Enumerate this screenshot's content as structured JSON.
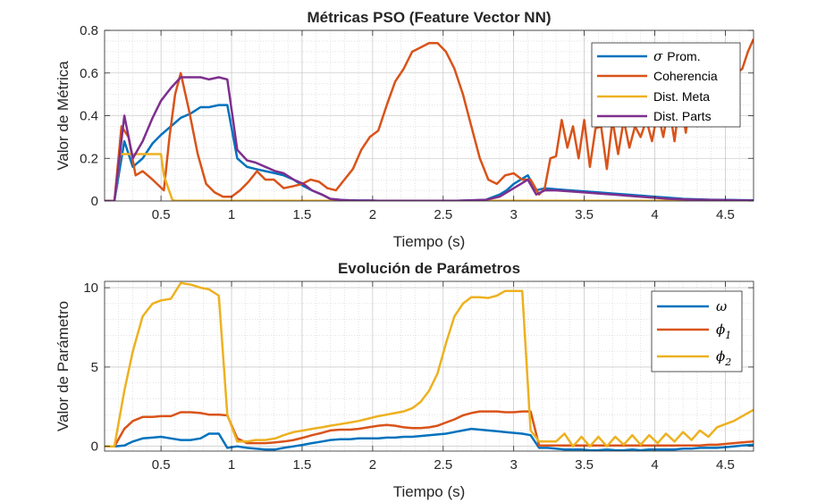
{
  "colors": {
    "blue": "#0072BD",
    "orange": "#D95319",
    "yellow": "#EDB120",
    "purple": "#7E2F8E",
    "axis": "#262626",
    "grid": "#c8c8c8"
  },
  "chart_data": [
    {
      "type": "line",
      "title": "Métricas PSO (Feature Vector NN)",
      "xlabel": "Tiempo (s)",
      "ylabel": "Valor de Métrica",
      "xlim": [
        0.1,
        4.7
      ],
      "ylim": [
        0,
        0.8
      ],
      "xticks": [
        0.5,
        1,
        1.5,
        2,
        2.5,
        3,
        3.5,
        4,
        4.5
      ],
      "xtick_labels": [
        "0.5",
        "1",
        "1.5",
        "2",
        "2.5",
        "3",
        "3.5",
        "4",
        "4.5"
      ],
      "yticks": [
        0,
        0.2,
        0.4,
        0.6,
        0.8
      ],
      "ytick_labels": [
        "0",
        "0.2",
        "0.4",
        "0.6",
        "0.8"
      ],
      "grid": true,
      "minor_grid": true,
      "legend_position": "top-right",
      "series": [
        {
          "name": "Prom.",
          "symbol": "σ",
          "color": "#0072BD",
          "x": [
            0.1,
            0.17,
            0.24,
            0.3,
            0.37,
            0.44,
            0.5,
            0.57,
            0.64,
            0.71,
            0.78,
            0.84,
            0.91,
            0.97,
            1.04,
            1.11,
            1.17,
            1.24,
            1.31,
            1.37,
            1.44,
            1.51,
            1.57,
            1.64,
            1.7,
            1.77,
            1.84,
            1.9,
            1.97,
            2.04,
            2.2,
            2.4,
            2.6,
            2.8,
            2.9,
            2.95,
            3.0,
            3.05,
            3.1,
            3.16,
            3.22,
            3.3,
            3.4,
            3.5,
            3.6,
            3.7,
            3.8,
            3.9,
            4.0,
            4.1,
            4.2,
            4.3,
            4.4,
            4.5,
            4.6,
            4.7
          ],
          "y": [
            0,
            0,
            0.28,
            0.16,
            0.2,
            0.27,
            0.31,
            0.35,
            0.39,
            0.41,
            0.44,
            0.44,
            0.45,
            0.45,
            0.2,
            0.16,
            0.15,
            0.14,
            0.13,
            0.12,
            0.1,
            0.07,
            0.05,
            0.03,
            0.01,
            0.005,
            0.003,
            0.002,
            0.002,
            0.001,
            0.001,
            0.001,
            0.001,
            0.005,
            0.03,
            0.05,
            0.08,
            0.1,
            0.12,
            0.05,
            0.06,
            0.055,
            0.05,
            0.045,
            0.04,
            0.035,
            0.03,
            0.025,
            0.02,
            0.015,
            0.01,
            0.008,
            0.006,
            0.005,
            0.004,
            0.003
          ]
        },
        {
          "name": "Coherencia",
          "color": "#D95319",
          "x": [
            0.1,
            0.17,
            0.22,
            0.27,
            0.32,
            0.37,
            0.44,
            0.52,
            0.56,
            0.6,
            0.64,
            0.7,
            0.76,
            0.82,
            0.88,
            0.94,
            1.0,
            1.06,
            1.12,
            1.18,
            1.24,
            1.3,
            1.37,
            1.44,
            1.5,
            1.56,
            1.62,
            1.68,
            1.74,
            1.8,
            1.86,
            1.92,
            1.98,
            2.04,
            2.1,
            2.16,
            2.22,
            2.28,
            2.34,
            2.4,
            2.46,
            2.52,
            2.58,
            2.64,
            2.7,
            2.76,
            2.82,
            2.88,
            2.94,
            3.0,
            3.06,
            3.12,
            3.18,
            3.22,
            3.26,
            3.3,
            3.34,
            3.38,
            3.42,
            3.46,
            3.5,
            3.54,
            3.58,
            3.62,
            3.66,
            3.7,
            3.74,
            3.78,
            3.82,
            3.86,
            3.9,
            3.94,
            3.98,
            4.02,
            4.06,
            4.1,
            4.14,
            4.18,
            4.22,
            4.26,
            4.3,
            4.34,
            4.38,
            4.42,
            4.46,
            4.5,
            4.54,
            4.58,
            4.62,
            4.66,
            4.7
          ],
          "y": [
            0,
            0,
            0.35,
            0.3,
            0.12,
            0.14,
            0.1,
            0.05,
            0.3,
            0.5,
            0.6,
            0.42,
            0.22,
            0.08,
            0.04,
            0.02,
            0.02,
            0.05,
            0.09,
            0.14,
            0.1,
            0.1,
            0.06,
            0.07,
            0.08,
            0.1,
            0.09,
            0.06,
            0.05,
            0.1,
            0.15,
            0.24,
            0.3,
            0.33,
            0.45,
            0.56,
            0.62,
            0.7,
            0.72,
            0.74,
            0.74,
            0.7,
            0.62,
            0.5,
            0.35,
            0.2,
            0.1,
            0.08,
            0.12,
            0.13,
            0.1,
            0.1,
            0.03,
            0.06,
            0.2,
            0.21,
            0.38,
            0.25,
            0.35,
            0.2,
            0.38,
            0.16,
            0.34,
            0.35,
            0.15,
            0.38,
            0.22,
            0.38,
            0.25,
            0.35,
            0.3,
            0.38,
            0.28,
            0.42,
            0.3,
            0.45,
            0.28,
            0.5,
            0.32,
            0.52,
            0.35,
            0.55,
            0.4,
            0.58,
            0.45,
            0.6,
            0.5,
            0.6,
            0.62,
            0.7,
            0.76
          ]
        },
        {
          "name": "Dist. Meta",
          "color": "#EDB120",
          "x": [
            0.1,
            0.17,
            0.21,
            0.3,
            0.4,
            0.5,
            0.52,
            0.58,
            0.6,
            1.0,
            2.0,
            3.0,
            4.0,
            4.7
          ],
          "y": [
            0,
            0,
            0.22,
            0.22,
            0.22,
            0.22,
            0.12,
            0.005,
            0.001,
            0.001,
            0.001,
            0.001,
            0.001,
            0.001
          ]
        },
        {
          "name": "Dist. Parts",
          "color": "#7E2F8E",
          "x": [
            0.1,
            0.17,
            0.24,
            0.3,
            0.37,
            0.44,
            0.5,
            0.57,
            0.64,
            0.71,
            0.78,
            0.84,
            0.91,
            0.97,
            1.04,
            1.11,
            1.17,
            1.24,
            1.31,
            1.37,
            1.44,
            1.51,
            1.57,
            1.64,
            1.7,
            1.77,
            1.84,
            1.9,
            1.97,
            2.04,
            2.2,
            2.4,
            2.6,
            2.8,
            2.9,
            2.95,
            3.0,
            3.05,
            3.1,
            3.16,
            3.22,
            3.3,
            3.4,
            3.5,
            3.6,
            3.7,
            3.8,
            3.9,
            4.0,
            4.1,
            4.2,
            4.3,
            4.4,
            4.5,
            4.6,
            4.7
          ],
          "y": [
            0,
            0,
            0.4,
            0.2,
            0.28,
            0.39,
            0.47,
            0.53,
            0.58,
            0.58,
            0.58,
            0.57,
            0.58,
            0.57,
            0.24,
            0.19,
            0.18,
            0.16,
            0.14,
            0.13,
            0.1,
            0.08,
            0.05,
            0.03,
            0.01,
            0.005,
            0.003,
            0.002,
            0.002,
            0.001,
            0.001,
            0.001,
            0.001,
            0.005,
            0.02,
            0.04,
            0.06,
            0.08,
            0.1,
            0.03,
            0.05,
            0.05,
            0.045,
            0.04,
            0.035,
            0.03,
            0.025,
            0.02,
            0.015,
            0.01,
            0.008,
            0.006,
            0.005,
            0.004,
            0.003,
            0.002
          ]
        }
      ]
    },
    {
      "type": "line",
      "title": "Evolución de Parámetros",
      "xlabel": "Tiempo (s)",
      "ylabel": "Valor de Parámetro",
      "xlim": [
        0.1,
        4.7
      ],
      "ylim": [
        -0.3,
        10.4
      ],
      "xticks": [
        0.5,
        1,
        1.5,
        2,
        2.5,
        3,
        3.5,
        4,
        4.5
      ],
      "xtick_labels": [
        "0.5",
        "1",
        "1.5",
        "2",
        "2.5",
        "3",
        "3.5",
        "4",
        "4.5"
      ],
      "yticks": [
        0,
        5,
        10
      ],
      "ytick_labels": [
        "0",
        "5",
        "10"
      ],
      "grid": true,
      "minor_grid": true,
      "legend_position": "top-right",
      "series": [
        {
          "name": "",
          "symbol": "ω",
          "color": "#0072BD",
          "x": [
            0.1,
            0.17,
            0.24,
            0.3,
            0.37,
            0.44,
            0.5,
            0.57,
            0.64,
            0.71,
            0.78,
            0.84,
            0.91,
            0.97,
            1.04,
            1.11,
            1.17,
            1.24,
            1.31,
            1.37,
            1.44,
            1.51,
            1.57,
            1.64,
            1.7,
            1.77,
            1.84,
            1.9,
            1.97,
            2.04,
            2.1,
            2.16,
            2.22,
            2.28,
            2.34,
            2.4,
            2.46,
            2.52,
            2.58,
            2.64,
            2.7,
            2.76,
            2.82,
            2.88,
            2.94,
            3.0,
            3.06,
            3.12,
            3.18,
            3.24,
            3.3,
            3.36,
            3.42,
            3.48,
            3.54,
            3.6,
            3.66,
            3.72,
            3.78,
            3.84,
            3.9,
            3.96,
            4.02,
            4.08,
            4.14,
            4.2,
            4.26,
            4.32,
            4.38,
            4.44,
            4.5,
            4.56,
            4.62,
            4.7
          ],
          "y": [
            0,
            0,
            0.05,
            0.3,
            0.5,
            0.55,
            0.6,
            0.5,
            0.4,
            0.4,
            0.5,
            0.8,
            0.8,
            -0.1,
            0.0,
            -0.1,
            -0.15,
            -0.2,
            -0.2,
            -0.1,
            0.0,
            0.1,
            0.2,
            0.3,
            0.4,
            0.45,
            0.45,
            0.5,
            0.5,
            0.5,
            0.55,
            0.55,
            0.6,
            0.6,
            0.65,
            0.7,
            0.75,
            0.8,
            0.9,
            1.0,
            1.1,
            1.05,
            1.0,
            0.95,
            0.9,
            0.85,
            0.8,
            0.7,
            -0.1,
            -0.1,
            -0.15,
            -0.2,
            -0.2,
            -0.2,
            -0.25,
            -0.25,
            -0.2,
            -0.25,
            -0.25,
            -0.2,
            -0.25,
            -0.2,
            -0.2,
            -0.2,
            -0.2,
            -0.15,
            -0.15,
            -0.1,
            -0.1,
            -0.1,
            -0.05,
            0.0,
            0.05,
            0.1
          ]
        },
        {
          "name": "1",
          "symbol": "ϕ",
          "color": "#D95319",
          "x": [
            0.1,
            0.17,
            0.24,
            0.3,
            0.37,
            0.44,
            0.5,
            0.57,
            0.64,
            0.71,
            0.78,
            0.84,
            0.91,
            0.97,
            1.04,
            1.11,
            1.17,
            1.24,
            1.31,
            1.37,
            1.44,
            1.51,
            1.57,
            1.64,
            1.7,
            1.77,
            1.84,
            1.9,
            1.97,
            2.04,
            2.1,
            2.16,
            2.22,
            2.28,
            2.34,
            2.4,
            2.46,
            2.52,
            2.58,
            2.64,
            2.7,
            2.76,
            2.82,
            2.88,
            2.94,
            3.0,
            3.06,
            3.12,
            3.18,
            3.24,
            3.3,
            3.36,
            3.42,
            3.48,
            3.54,
            3.6,
            3.66,
            3.72,
            3.78,
            3.84,
            3.9,
            3.96,
            4.02,
            4.08,
            4.14,
            4.2,
            4.26,
            4.32,
            4.38,
            4.44,
            4.5,
            4.56,
            4.62,
            4.7
          ],
          "y": [
            0,
            0,
            1.1,
            1.6,
            1.85,
            1.85,
            1.9,
            1.9,
            2.15,
            2.15,
            2.1,
            2.0,
            2.0,
            1.95,
            0.5,
            0.2,
            0.2,
            0.2,
            0.25,
            0.3,
            0.4,
            0.55,
            0.7,
            0.85,
            1.0,
            1.05,
            1.05,
            1.1,
            1.2,
            1.3,
            1.35,
            1.3,
            1.2,
            1.15,
            1.15,
            1.2,
            1.3,
            1.5,
            1.7,
            1.95,
            2.1,
            2.2,
            2.2,
            2.2,
            2.15,
            2.15,
            2.2,
            2.2,
            0.05,
            0.05,
            0.05,
            0.05,
            0.05,
            0.05,
            0.05,
            0.05,
            0.05,
            0.05,
            0.05,
            0.05,
            0.05,
            0.05,
            0.05,
            0.05,
            0.05,
            0.05,
            0.05,
            0.05,
            0.1,
            0.1,
            0.15,
            0.2,
            0.25,
            0.3
          ]
        },
        {
          "name": "2",
          "symbol": "ϕ",
          "color": "#EDB120",
          "x": [
            0.1,
            0.17,
            0.24,
            0.3,
            0.37,
            0.44,
            0.5,
            0.57,
            0.64,
            0.71,
            0.78,
            0.84,
            0.91,
            0.97,
            1.04,
            1.11,
            1.17,
            1.24,
            1.31,
            1.37,
            1.44,
            1.51,
            1.57,
            1.64,
            1.7,
            1.77,
            1.84,
            1.9,
            1.97,
            2.04,
            2.1,
            2.16,
            2.22,
            2.28,
            2.34,
            2.4,
            2.46,
            2.52,
            2.58,
            2.64,
            2.7,
            2.76,
            2.82,
            2.88,
            2.94,
            3.0,
            3.06,
            3.12,
            3.18,
            3.24,
            3.3,
            3.36,
            3.42,
            3.48,
            3.54,
            3.6,
            3.66,
            3.72,
            3.78,
            3.84,
            3.9,
            3.96,
            4.02,
            4.08,
            4.14,
            4.2,
            4.26,
            4.32,
            4.38,
            4.44,
            4.5,
            4.56,
            4.62,
            4.7
          ],
          "y": [
            0,
            0,
            3.5,
            6.0,
            8.2,
            9.0,
            9.2,
            9.3,
            10.3,
            10.2,
            10.0,
            9.9,
            9.5,
            2.0,
            0.3,
            0.3,
            0.4,
            0.4,
            0.5,
            0.7,
            0.9,
            1.0,
            1.1,
            1.2,
            1.3,
            1.4,
            1.5,
            1.6,
            1.75,
            1.9,
            2.0,
            2.1,
            2.2,
            2.4,
            2.8,
            3.5,
            4.6,
            6.5,
            8.2,
            9.0,
            9.4,
            9.4,
            9.35,
            9.5,
            9.8,
            9.8,
            9.8,
            1.0,
            0.3,
            0.3,
            0.3,
            0.8,
            0.0,
            0.6,
            0.0,
            0.6,
            0.0,
            0.6,
            0.1,
            0.7,
            0.1,
            0.7,
            0.2,
            0.8,
            0.3,
            0.9,
            0.4,
            1.0,
            0.6,
            1.2,
            1.4,
            1.6,
            1.9,
            2.3
          ]
        }
      ]
    }
  ]
}
